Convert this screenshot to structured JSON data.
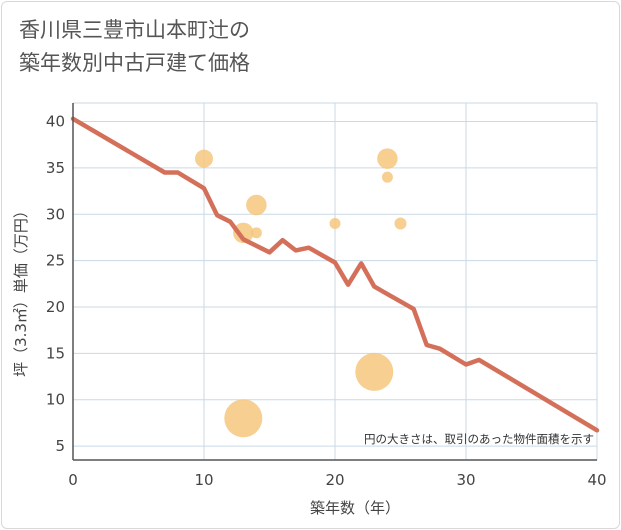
{
  "chart_data": {
    "type": "scatter",
    "title_line1": "香川県三豊市山本町辻の",
    "title_line2": "築年数別中古戸建て価格",
    "xlabel": "築年数（年）",
    "ylabel": "坪（3.3㎡）単価（万円）",
    "xlim": [
      0,
      40
    ],
    "ylim": [
      3.5,
      42
    ],
    "x_ticks": [
      0,
      10,
      20,
      30,
      40
    ],
    "y_ticks": [
      5,
      10,
      15,
      20,
      25,
      30,
      35,
      40
    ],
    "grid": true,
    "note": "円の大きさは、取引のあった物件面積を示す",
    "colors": {
      "bubble": "#f5c77e",
      "line": "#d4705a",
      "grid": "#c9d9e6",
      "axis": "#555555"
    },
    "bubbles": [
      {
        "x": 10,
        "y": 36,
        "size": 2
      },
      {
        "x": 13,
        "y": 28,
        "size": 2.5
      },
      {
        "x": 13,
        "y": 8,
        "size": 6
      },
      {
        "x": 14,
        "y": 31,
        "size": 2.5
      },
      {
        "x": 14,
        "y": 28,
        "size": 0.6
      },
      {
        "x": 20,
        "y": 29,
        "size": 0.6
      },
      {
        "x": 23,
        "y": 13,
        "size": 6
      },
      {
        "x": 24,
        "y": 36,
        "size": 2.5
      },
      {
        "x": 24,
        "y": 34,
        "size": 0.6
      },
      {
        "x": 25,
        "y": 29,
        "size": 0.8
      }
    ],
    "trend_line": {
      "x": [
        0,
        7,
        8,
        10,
        11,
        12,
        13,
        15,
        16,
        17,
        18,
        20,
        21,
        22,
        23,
        26,
        27,
        28,
        30,
        31,
        40
      ],
      "y": [
        40.3,
        34.5,
        34.5,
        32.8,
        29.9,
        29.2,
        27.3,
        25.9,
        27.2,
        26.1,
        26.4,
        24.8,
        22.4,
        24.7,
        22.2,
        19.8,
        15.9,
        15.5,
        13.8,
        14.3,
        6.7
      ]
    }
  }
}
